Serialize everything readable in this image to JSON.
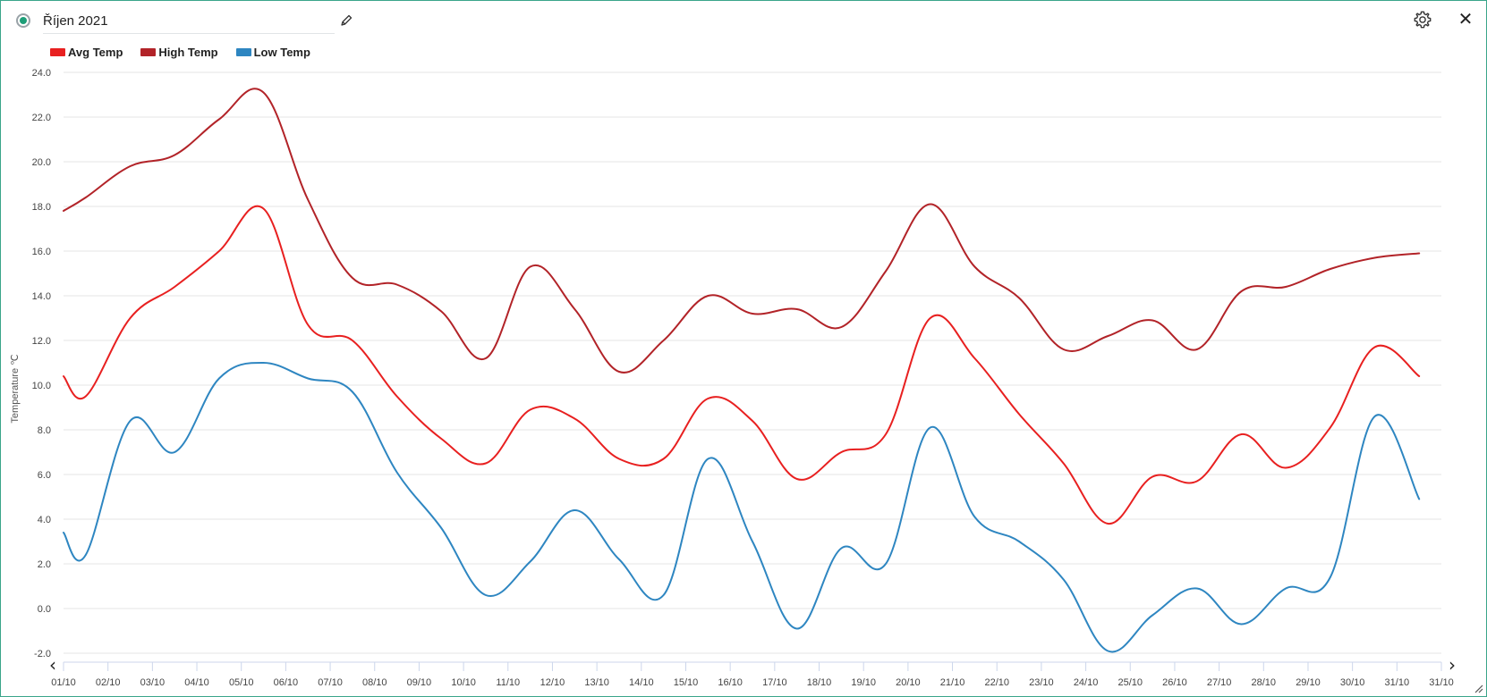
{
  "header": {
    "title": "Říjen 2021",
    "status_icon": "status-dot-icon",
    "edit_icon": "pencil-icon",
    "settings_icon": "gear-icon",
    "close_icon": "close-icon",
    "close_glyph": "✕"
  },
  "nav": {
    "prev_glyph": "‹",
    "next_glyph": "›"
  },
  "colors": {
    "accent": "#1e9e78",
    "frame": "#3aa58a",
    "avg": "#e82020",
    "high": "#b22328",
    "low": "#2e86c1"
  },
  "chart_data": {
    "type": "line",
    "title": "",
    "xlabel": "",
    "ylabel": "Temperature ℃",
    "ylim": [
      -2,
      24
    ],
    "yticks": [
      "-2.0",
      "0.0",
      "2.0",
      "4.0",
      "6.0",
      "8.0",
      "10.0",
      "12.0",
      "14.0",
      "16.0",
      "18.0",
      "20.0",
      "22.0",
      "24.0"
    ],
    "categories": [
      "01/10",
      "02/10",
      "03/10",
      "04/10",
      "05/10",
      "06/10",
      "07/10",
      "08/10",
      "09/10",
      "10/10",
      "11/10",
      "12/10",
      "13/10",
      "14/10",
      "15/10",
      "16/10",
      "17/10",
      "18/10",
      "19/10",
      "20/10",
      "21/10",
      "22/10",
      "23/10",
      "24/10",
      "25/10",
      "26/10",
      "27/10",
      "28/10",
      "29/10",
      "30/10",
      "31/10",
      "31/10"
    ],
    "grid": true,
    "legend_position": "top-left",
    "x": [
      0,
      0.5,
      1.5,
      2.5,
      3.5,
      4.5,
      5.5,
      6.5,
      7.5,
      8.5,
      9.5,
      10.5,
      11.5,
      12.5,
      13.5,
      14.5,
      15.5,
      16.5,
      17.5,
      18.5,
      19.5,
      20.5,
      21.5,
      22.5,
      23.5,
      24.5,
      25.5,
      26.5,
      27.5,
      28.5,
      29.5,
      30.5
    ],
    "series": [
      {
        "name": "Avg Temp",
        "color": "#e82020",
        "values": [
          10.4,
          9.5,
          13.0,
          14.4,
          16.0,
          17.9,
          12.7,
          12.0,
          9.5,
          7.6,
          6.5,
          8.9,
          8.5,
          6.7,
          6.7,
          9.4,
          8.4,
          5.8,
          7.0,
          7.8,
          13.0,
          11.2,
          8.7,
          6.5,
          3.8,
          5.9,
          5.7,
          7.8,
          6.3,
          8.1,
          11.7,
          10.4
        ]
      },
      {
        "name": "High Temp",
        "color": "#b22328",
        "values": [
          17.8,
          18.4,
          19.8,
          20.3,
          21.9,
          23.1,
          18.3,
          14.8,
          14.5,
          13.3,
          11.2,
          15.3,
          13.4,
          10.6,
          12.0,
          14.0,
          13.2,
          13.4,
          12.6,
          15.1,
          18.1,
          15.3,
          13.9,
          11.6,
          12.2,
          12.9,
          11.6,
          14.2,
          14.4,
          15.2,
          15.7,
          15.9
        ]
      },
      {
        "name": "Low Temp",
        "color": "#2e86c1",
        "values": [
          3.4,
          2.4,
          8.4,
          7.0,
          10.3,
          11.0,
          10.3,
          9.7,
          6.1,
          3.6,
          0.6,
          2.1,
          4.4,
          2.2,
          0.6,
          6.7,
          3.0,
          -0.9,
          2.7,
          2.0,
          8.1,
          4.1,
          3.0,
          1.3,
          -1.9,
          -0.3,
          0.9,
          -0.7,
          0.9,
          1.4,
          8.6,
          4.9
        ]
      }
    ]
  }
}
